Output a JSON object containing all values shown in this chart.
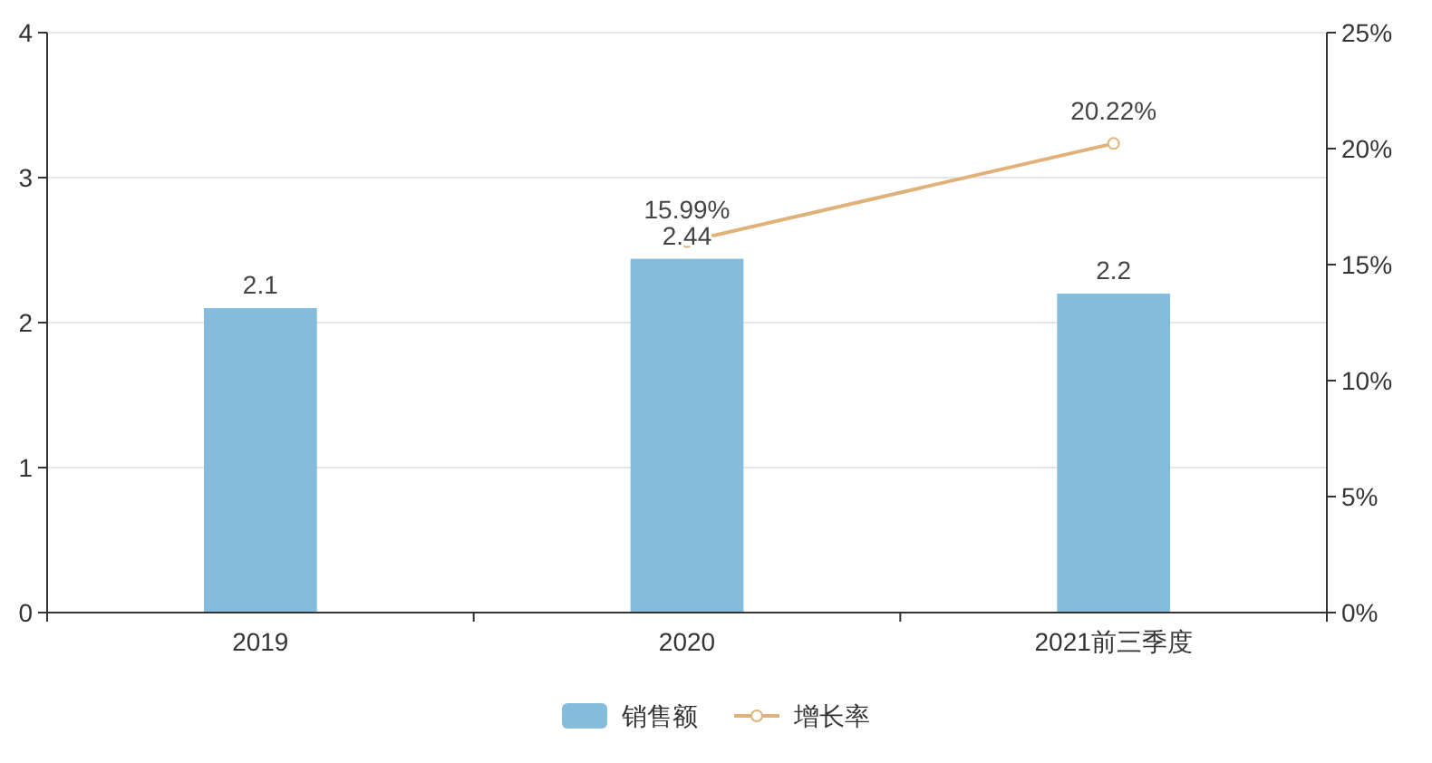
{
  "chart_data": {
    "type": "bar",
    "categories": [
      "2019",
      "2020",
      "2021前三季度"
    ],
    "series": [
      {
        "name": "销售额",
        "color": "#85bcdc",
        "values": [
          2.1,
          2.44,
          2.2
        ],
        "value_labels": [
          "2.1",
          "2.44",
          "2.2"
        ]
      },
      {
        "name": "增长率",
        "type": "line",
        "axis": "y2",
        "color": "#e0b27a",
        "values": [
          null,
          15.99,
          20.22
        ],
        "value_labels": [
          null,
          "15.99%",
          "20.22%"
        ],
        "marker": "circle"
      }
    ],
    "ylim": [
      0,
      4
    ],
    "yticks": [
      0,
      1,
      2,
      3,
      4
    ],
    "y2lim": [
      0,
      25
    ],
    "y2ticks": [
      {
        "value": 0,
        "label": "0%"
      },
      {
        "value": 5,
        "label": "5%"
      },
      {
        "value": 10,
        "label": "10%"
      },
      {
        "value": 15,
        "label": "15%"
      },
      {
        "value": 20,
        "label": "20%"
      },
      {
        "value": 25,
        "label": "25%"
      }
    ],
    "grid": "y",
    "legend": "bottom"
  }
}
